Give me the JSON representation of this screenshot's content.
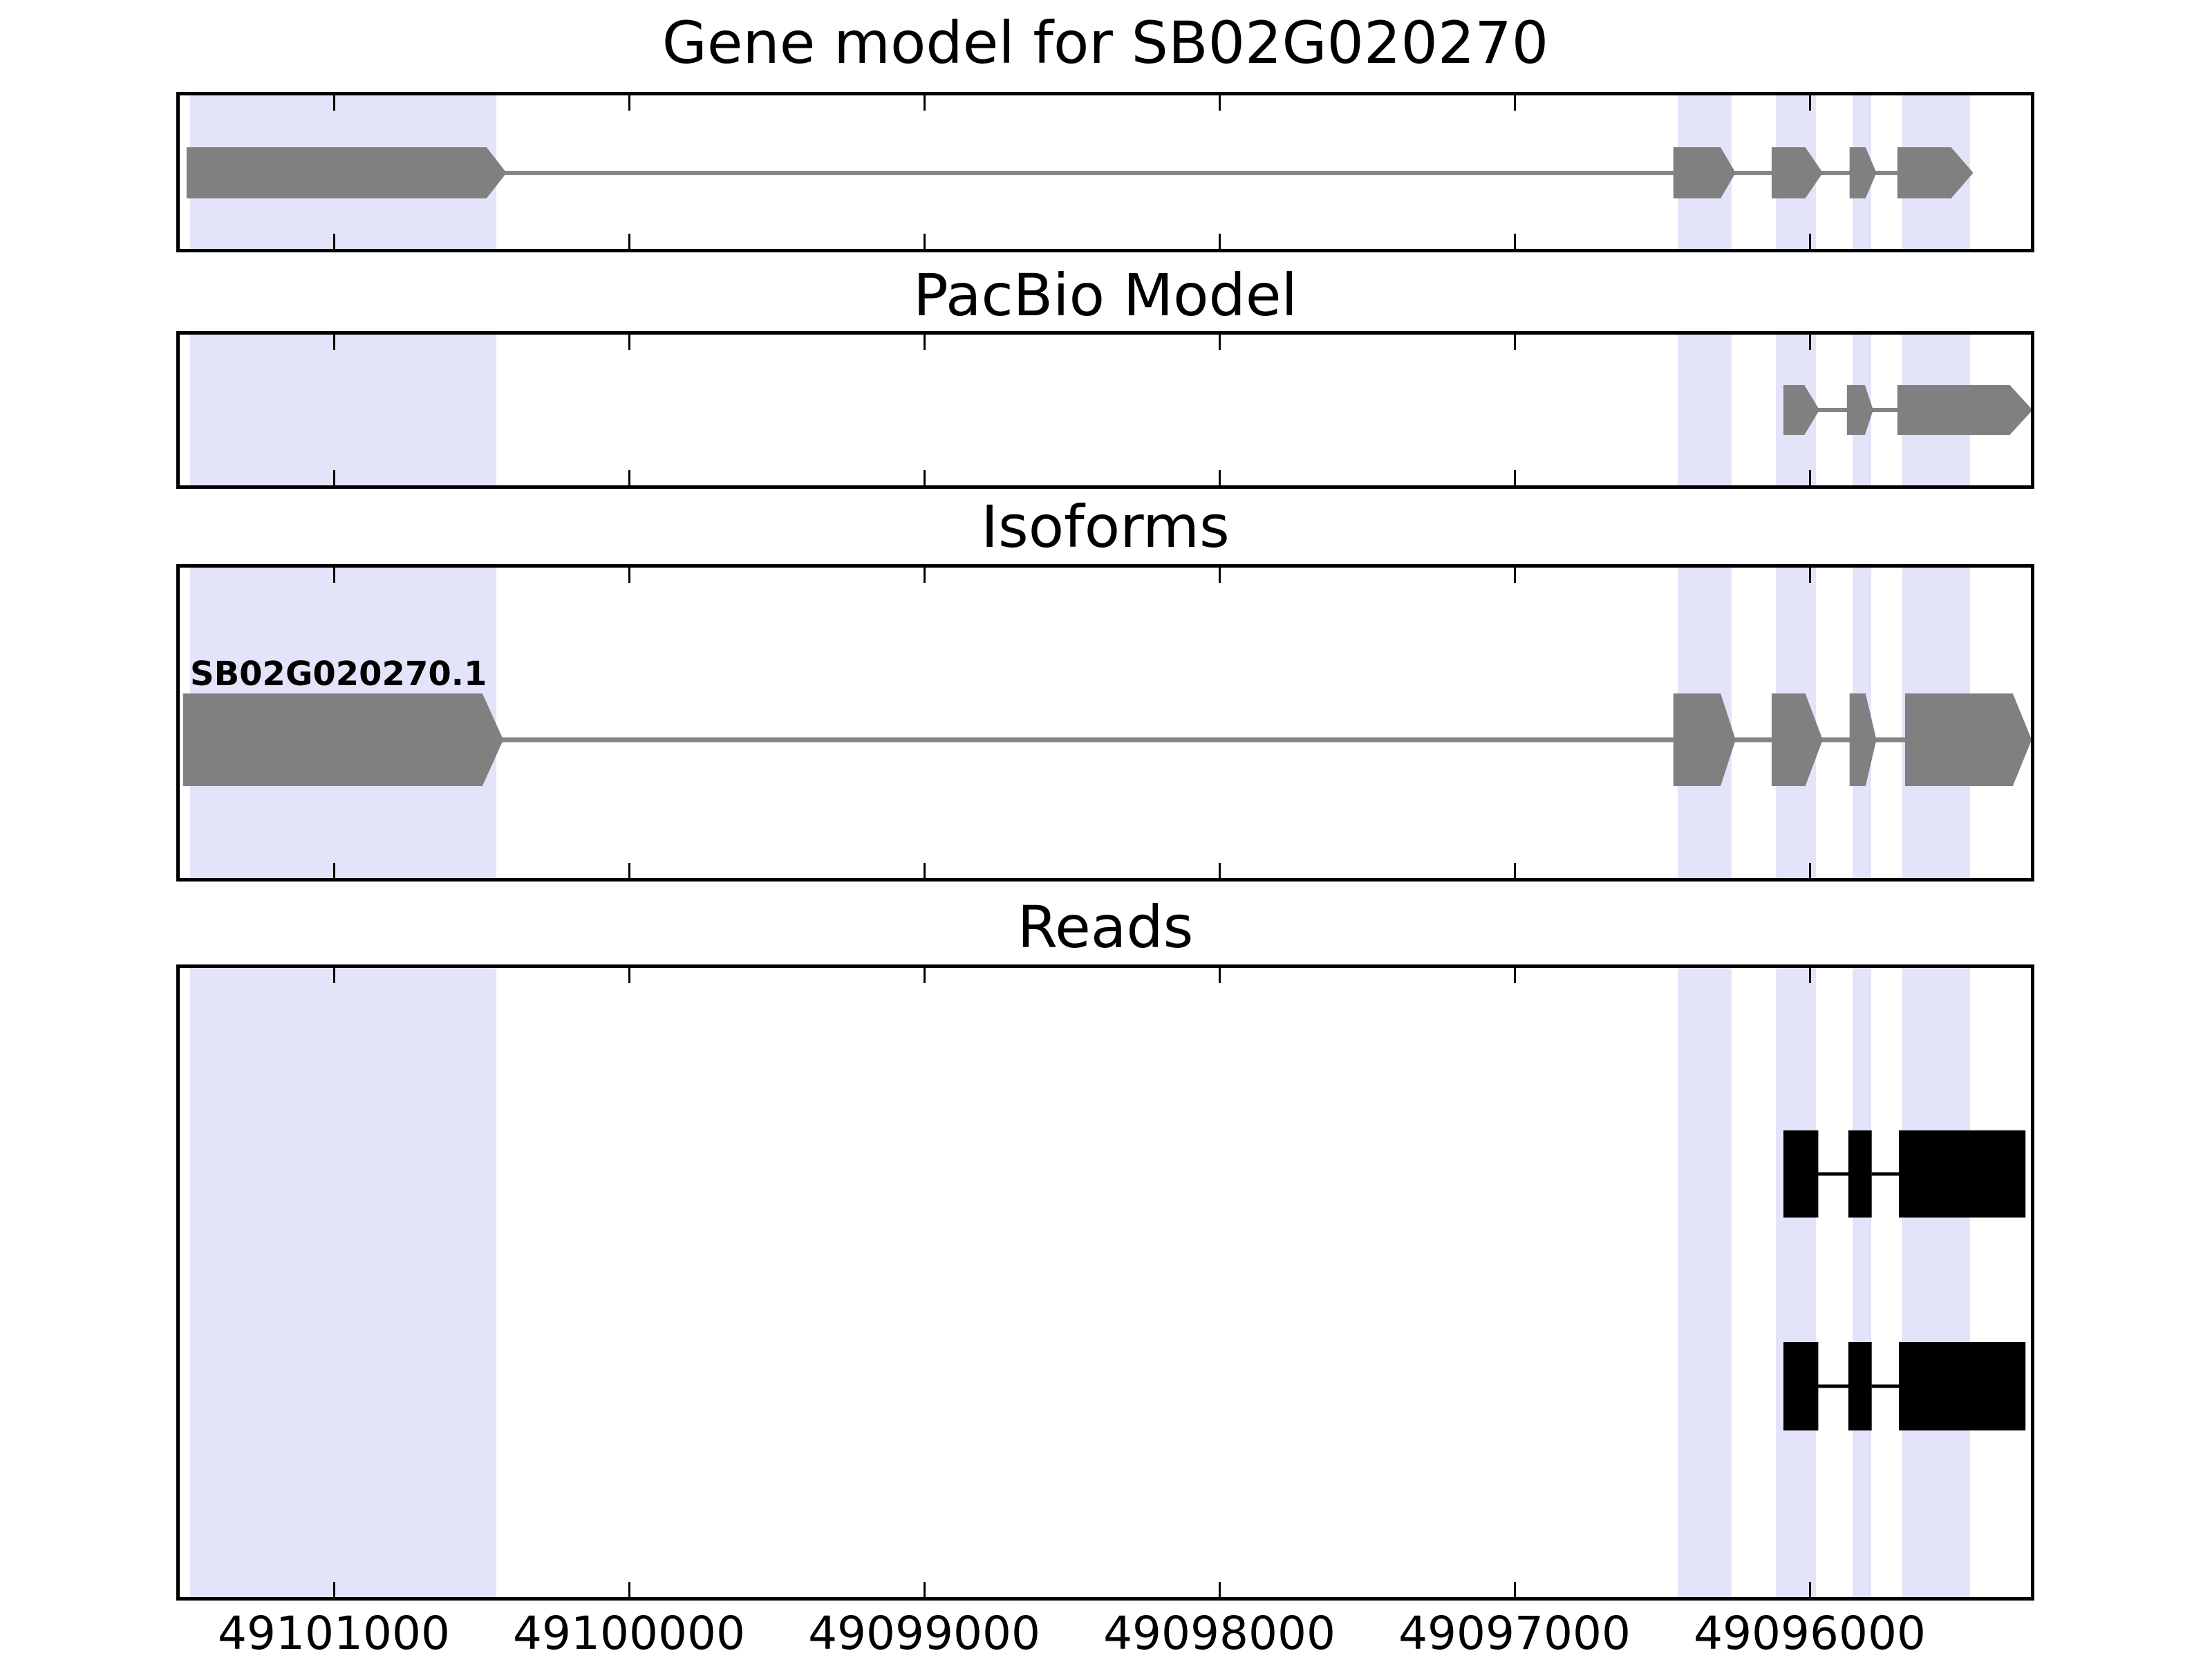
{
  "chart_data": {
    "type": "gene-model-tracks",
    "title": "Gene model for SB02G020270",
    "axis": {
      "xlabel": "",
      "orientation": "decreasing-left-to-right",
      "xlim": [
        49101534,
        49095239
      ],
      "tick_positions": [
        49101000,
        49100000,
        49099000,
        49098000,
        49097000,
        49096000
      ],
      "tick_labels": [
        "49101000",
        "49100000",
        "49099000",
        "49098000",
        "49097000",
        "49096000"
      ]
    },
    "highlight_regions": [
      {
        "from": 49101487,
        "to": 49100450
      },
      {
        "from": 49096447,
        "to": 49096265
      },
      {
        "from": 49096115,
        "to": 49095979
      },
      {
        "from": 49095855,
        "to": 49095792
      },
      {
        "from": 49095686,
        "to": 49095457
      }
    ],
    "tracks": {
      "gene_model": {
        "title": "Gene model for SB02G020270",
        "exons": [
          {
            "start": 49101499,
            "body_end": 49100483,
            "tip": 49100415
          },
          {
            "start": 49096462,
            "body_end": 49096302,
            "tip": 49096251
          },
          {
            "start": 49096129,
            "body_end": 49096015,
            "tip": 49095956
          },
          {
            "start": 49095865,
            "body_end": 49095811,
            "tip": 49095774
          },
          {
            "start": 49095703,
            "body_end": 49095521,
            "tip": 49095446
          }
        ]
      },
      "pacbio": {
        "title": "PacBio Model",
        "exons": [
          {
            "start": 49096089,
            "body_end": 49096018,
            "tip": 49095967
          },
          {
            "start": 49095874,
            "body_end": 49095813,
            "tip": 49095785
          },
          {
            "start": 49095703,
            "body_end": 49095322,
            "tip": 49095245
          }
        ]
      },
      "isoforms": {
        "title": "Isoforms",
        "isoforms": [
          {
            "label": "SB02G020270.1",
            "exons": [
              {
                "start": 49101511,
                "body_end": 49100497,
                "tip": 49100426
              },
              {
                "start": 49096462,
                "body_end": 49096302,
                "tip": 49096251
              },
              {
                "start": 49096129,
                "body_end": 49096015,
                "tip": 49095956
              },
              {
                "start": 49095865,
                "body_end": 49095811,
                "tip": 49095774
              },
              {
                "start": 49095677,
                "body_end": 49095312,
                "tip": 49095248
              }
            ]
          }
        ]
      },
      "reads": {
        "title": "Reads",
        "reads": [
          {
            "blocks": [
              [
                49096089,
                49095971
              ],
              [
                49095869,
                49095790
              ],
              [
                49095698,
                49095269
              ]
            ]
          },
          {
            "blocks": [
              [
                49096089,
                49095971
              ],
              [
                49095869,
                49095790
              ],
              [
                49095698,
                49095269
              ]
            ]
          }
        ]
      }
    },
    "colors": {
      "highlight_band": "#e3e3fa",
      "feature_gray": "#808080",
      "connector_gray": "#858585",
      "read_black": "#000000",
      "axis_black": "#000000",
      "background": "#ffffff"
    }
  }
}
